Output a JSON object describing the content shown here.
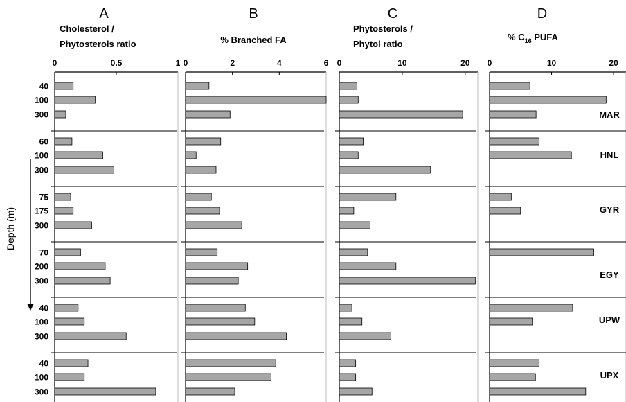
{
  "y_axis_title": "Depth (m)",
  "colors": {
    "bar_fill": "#a6a6a6",
    "bar_stroke": "#000000",
    "line": "#000000",
    "divider": "#000000"
  },
  "stations": [
    {
      "name": "MAR",
      "depths": [
        "40",
        "100",
        "300"
      ]
    },
    {
      "name": "HNL",
      "depths": [
        "60",
        "100",
        "300"
      ]
    },
    {
      "name": "GYR",
      "depths": [
        "75",
        "175",
        "300"
      ]
    },
    {
      "name": "EGY",
      "depths": [
        "70",
        "200",
        "300"
      ]
    },
    {
      "name": "UPW",
      "depths": [
        "40",
        "100",
        "300"
      ]
    },
    {
      "name": "UPX",
      "depths": [
        "40",
        "100",
        "300"
      ]
    }
  ],
  "chart_data": [
    {
      "type": "bar",
      "orientation": "horizontal",
      "letter": "A",
      "title_lines": [
        "Cholesterol  /",
        "Phytosterols ratio"
      ],
      "xlim": [
        0,
        1
      ],
      "xticks": [
        0,
        0.5,
        1
      ],
      "xtick_labels": [
        "0",
        "0.5",
        "1"
      ],
      "values": [
        [
          0.15,
          0.33,
          0.09
        ],
        [
          0.14,
          0.39,
          0.48
        ],
        [
          0.13,
          0.15,
          0.3
        ],
        [
          0.21,
          0.41,
          0.45
        ],
        [
          0.19,
          0.24,
          0.58
        ],
        [
          0.27,
          0.24,
          0.82
        ]
      ]
    },
    {
      "type": "bar",
      "orientation": "horizontal",
      "letter": "B",
      "title_lines": [
        "% Branched FA"
      ],
      "xlim": [
        0,
        6
      ],
      "xticks": [
        0,
        2,
        4,
        6
      ],
      "xtick_labels": [
        "0",
        "2",
        "4",
        "6"
      ],
      "values": [
        [
          1.0,
          6.0,
          1.9
        ],
        [
          1.5,
          0.45,
          1.3
        ],
        [
          1.1,
          1.45,
          2.4
        ],
        [
          1.35,
          2.65,
          2.25
        ],
        [
          2.55,
          2.95,
          4.3
        ],
        [
          3.85,
          3.65,
          2.1
        ]
      ]
    },
    {
      "type": "bar",
      "orientation": "horizontal",
      "letter": "C",
      "title_lines": [
        "Phytosterols /",
        "Phytol ratio"
      ],
      "xlim": [
        0,
        22
      ],
      "xticks": [
        0,
        10,
        20
      ],
      "xtick_labels": [
        "0",
        "10",
        "20"
      ],
      "values": [
        [
          2.8,
          3.0,
          19.6
        ],
        [
          3.8,
          3.0,
          14.5
        ],
        [
          9.0,
          2.3,
          4.9
        ],
        [
          4.5,
          9.0,
          21.6
        ],
        [
          2.0,
          3.6,
          8.2
        ],
        [
          2.6,
          2.6,
          5.2
        ]
      ]
    },
    {
      "type": "bar",
      "orientation": "horizontal",
      "letter": "D",
      "title_main": "% C",
      "title_sub": "16",
      "title_rest": " PUFA",
      "xlim": [
        0,
        22
      ],
      "xticks": [
        0,
        10,
        20
      ],
      "xtick_labels": [
        "0",
        "10",
        "20"
      ],
      "values": [
        [
          6.5,
          18.8,
          7.5
        ],
        [
          8.0,
          13.2,
          null
        ],
        [
          3.5,
          5.0,
          null
        ],
        [
          16.8,
          null,
          null
        ],
        [
          13.4,
          6.9,
          null
        ],
        [
          8.0,
          7.4,
          15.5
        ]
      ]
    }
  ]
}
